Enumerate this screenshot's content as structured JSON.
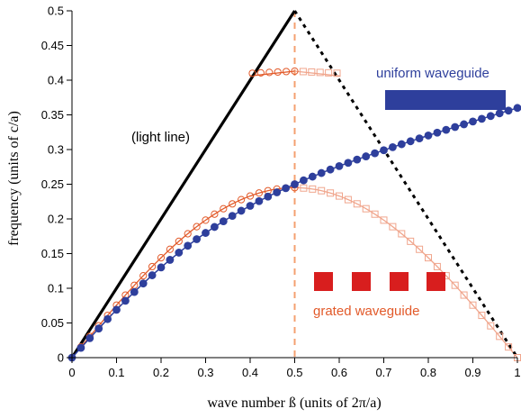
{
  "chart_data": {
    "type": "line",
    "title": "",
    "xlabel": "wave number ß (units of 2π/a)",
    "ylabel": "frequency (units of c/a)",
    "xlim": [
      0,
      1
    ],
    "ylim": [
      0,
      0.5
    ],
    "x_ticks": [
      "0",
      "0.1",
      "0.2",
      "0.3",
      "0.4",
      "0.5",
      "0.6",
      "0.7",
      "0.8",
      "0.9",
      "1"
    ],
    "y_ticks": [
      "0",
      "0.05",
      "0.1",
      "0.15",
      "0.2",
      "0.25",
      "0.3",
      "0.35",
      "0.4",
      "0.45",
      "0.5"
    ],
    "grid": false,
    "colors": {
      "light_line": "#000000",
      "uniform": "#2e3f9c",
      "grated": "#e25a2a",
      "grated_light": "#f0a58c",
      "marker_line": "#f4a070"
    },
    "series": [
      {
        "key": "light_line",
        "style": "solid",
        "x": [
          0,
          0.5
        ],
        "y": [
          0,
          0.5
        ]
      },
      {
        "key": "light_line_folded",
        "style": "dashed",
        "x": [
          0.5,
          1.0
        ],
        "y": [
          0.5,
          0.0
        ]
      },
      {
        "key": "uniform",
        "style": "dots",
        "x": [
          0,
          1.0
        ],
        "y": [
          0,
          0.36
        ],
        "count": 51
      },
      {
        "key": "grated_lower",
        "style": "circles",
        "x": [
          0,
          0.1,
          0.2,
          0.3,
          0.4,
          0.5
        ],
        "y": [
          0,
          0.11,
          0.175,
          0.215,
          0.238,
          0.245
        ]
      },
      {
        "key": "grated_lower_folded",
        "style": "squares",
        "x": [
          0.5,
          0.6,
          0.7,
          0.8,
          0.9,
          1.0
        ],
        "y": [
          0.245,
          0.238,
          0.215,
          0.175,
          0.11,
          0
        ]
      },
      {
        "key": "grated_upper",
        "style": "circles",
        "x": [
          0.405,
          0.5
        ],
        "y": [
          0.41,
          0.413
        ]
      },
      {
        "key": "grated_upper_folded",
        "style": "squares",
        "x": [
          0.5,
          0.595
        ],
        "y": [
          0.413,
          0.41
        ]
      }
    ],
    "band_edge": {
      "x": 0.5
    },
    "annotations": {
      "light_line": "(light line)",
      "uniform": "uniform waveguide",
      "grated": "grated waveguide"
    },
    "icons": [
      "uniform-waveguide-bar-icon",
      "grated-waveguide-blocks-icon"
    ]
  }
}
